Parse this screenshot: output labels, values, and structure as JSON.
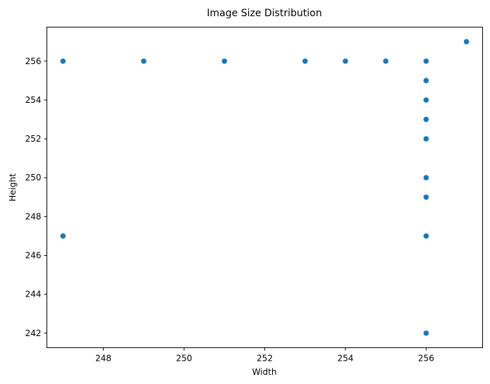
{
  "chart_data": {
    "type": "scatter",
    "title": "Image Size Distribution",
    "xlabel": "Width",
    "ylabel": "Height",
    "xlim": [
      246.6,
      257.4
    ],
    "ylim": [
      241.25,
      257.75
    ],
    "xticks": [
      248,
      250,
      252,
      254,
      256
    ],
    "yticks": [
      242,
      244,
      246,
      248,
      250,
      252,
      254,
      256
    ],
    "grid": false,
    "marker_color": "#1f77b4",
    "points": [
      {
        "x": 247,
        "y": 256
      },
      {
        "x": 247,
        "y": 247
      },
      {
        "x": 249,
        "y": 256
      },
      {
        "x": 251,
        "y": 256
      },
      {
        "x": 253,
        "y": 256
      },
      {
        "x": 254,
        "y": 256
      },
      {
        "x": 255,
        "y": 256
      },
      {
        "x": 256,
        "y": 256
      },
      {
        "x": 256,
        "y": 255
      },
      {
        "x": 256,
        "y": 254
      },
      {
        "x": 256,
        "y": 253
      },
      {
        "x": 256,
        "y": 252
      },
      {
        "x": 256,
        "y": 250
      },
      {
        "x": 256,
        "y": 249
      },
      {
        "x": 256,
        "y": 247
      },
      {
        "x": 256,
        "y": 242
      },
      {
        "x": 257,
        "y": 257
      }
    ]
  }
}
